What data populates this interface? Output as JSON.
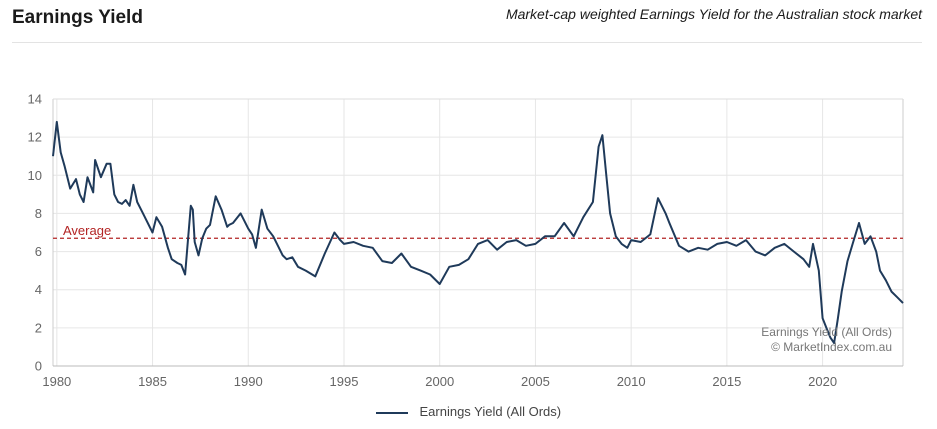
{
  "header": {
    "title": "Earnings Yield",
    "subtitle": "Market-cap weighted Earnings Yield for the Australian stock market"
  },
  "colors": {
    "series": "#1f3a5a",
    "average": "#b32424",
    "grid": "#e6e6e6"
  },
  "chart_data": {
    "type": "line",
    "title": "Earnings Yield",
    "subtitle": "Market-cap weighted Earnings Yield for the Australian stock market",
    "xlabel": "",
    "ylabel": "",
    "xlim": [
      1979.8,
      2024.2
    ],
    "ylim": [
      0,
      14
    ],
    "xticks": [
      1980,
      1985,
      1990,
      1995,
      2000,
      2005,
      2010,
      2015,
      2020
    ],
    "yticks": [
      0,
      2,
      4,
      6,
      8,
      10,
      12,
      14
    ],
    "grid": true,
    "legend": "bottom-center",
    "average": {
      "label": "Average",
      "value": 6.7
    },
    "credits": [
      "Earnings Yield (All Ords)",
      "© MarketIndex.com.au"
    ],
    "series": [
      {
        "name": "Earnings Yield (All Ords)",
        "x": [
          1979.8,
          1980.0,
          1980.2,
          1980.4,
          1980.7,
          1981.0,
          1981.2,
          1981.4,
          1981.6,
          1981.9,
          1982.0,
          1982.3,
          1982.6,
          1982.8,
          1983.0,
          1983.2,
          1983.4,
          1983.6,
          1983.8,
          1984.0,
          1984.2,
          1984.5,
          1984.7,
          1985.0,
          1985.2,
          1985.5,
          1985.8,
          1986.0,
          1986.3,
          1986.5,
          1986.7,
          1987.0,
          1987.1,
          1987.2,
          1987.4,
          1987.6,
          1987.8,
          1988.0,
          1988.3,
          1988.6,
          1988.9,
          1989.0,
          1989.2,
          1989.6,
          1990.0,
          1990.2,
          1990.4,
          1990.7,
          1991.0,
          1991.3,
          1991.5,
          1991.8,
          1992.0,
          1992.3,
          1992.6,
          1993.0,
          1993.5,
          1994.0,
          1994.5,
          1994.8,
          1995.0,
          1995.5,
          1996.0,
          1996.5,
          1997.0,
          1997.5,
          1998.0,
          1998.5,
          1999.0,
          1999.5,
          2000.0,
          2000.5,
          2001.0,
          2001.5,
          2002.0,
          2002.5,
          2003.0,
          2003.5,
          2004.0,
          2004.5,
          2005.0,
          2005.5,
          2006.0,
          2006.5,
          2007.0,
          2007.5,
          2008.0,
          2008.3,
          2008.5,
          2008.7,
          2008.9,
          2009.2,
          2009.5,
          2009.8,
          2010.0,
          2010.5,
          2011.0,
          2011.4,
          2011.8,
          2012.0,
          2012.5,
          2013.0,
          2013.5,
          2014.0,
          2014.5,
          2015.0,
          2015.5,
          2016.0,
          2016.5,
          2017.0,
          2017.5,
          2018.0,
          2018.5,
          2019.0,
          2019.3,
          2019.5,
          2019.8,
          2020.0,
          2020.2,
          2020.4,
          2020.6,
          2020.8,
          2021.0,
          2021.3,
          2021.6,
          2021.9,
          2022.2,
          2022.5,
          2022.8,
          2023.0,
          2023.3,
          2023.6,
          2023.9,
          2024.2
        ],
        "y": [
          11.0,
          12.8,
          11.2,
          10.5,
          9.3,
          9.8,
          9.0,
          8.6,
          9.9,
          9.1,
          10.8,
          9.9,
          10.6,
          10.6,
          9.0,
          8.6,
          8.5,
          8.7,
          8.4,
          9.5,
          8.6,
          8.0,
          7.6,
          7.0,
          7.8,
          7.3,
          6.2,
          5.6,
          5.4,
          5.3,
          4.8,
          8.4,
          8.2,
          6.5,
          5.8,
          6.7,
          7.2,
          7.4,
          8.9,
          8.2,
          7.3,
          7.4,
          7.5,
          8.0,
          7.2,
          6.9,
          6.2,
          8.2,
          7.2,
          6.8,
          6.4,
          5.8,
          5.6,
          5.7,
          5.2,
          5.0,
          4.7,
          5.9,
          7.0,
          6.6,
          6.4,
          6.5,
          6.3,
          6.2,
          5.5,
          5.4,
          5.9,
          5.2,
          5.0,
          4.8,
          4.3,
          5.2,
          5.3,
          5.6,
          6.4,
          6.6,
          6.1,
          6.5,
          6.6,
          6.3,
          6.4,
          6.8,
          6.8,
          7.5,
          6.8,
          7.8,
          8.6,
          11.5,
          12.1,
          10.0,
          8.0,
          6.8,
          6.4,
          6.2,
          6.6,
          6.5,
          6.9,
          8.8,
          8.0,
          7.5,
          6.3,
          6.0,
          6.2,
          6.1,
          6.4,
          6.5,
          6.3,
          6.6,
          6.0,
          5.8,
          6.2,
          6.4,
          6.0,
          5.6,
          5.2,
          6.4,
          5.0,
          2.5,
          2.0,
          1.5,
          1.2,
          2.5,
          3.9,
          5.5,
          6.5,
          7.5,
          6.4,
          6.8,
          6.0,
          5.0,
          4.5,
          3.9,
          3.6,
          3.3
        ]
      }
    ]
  }
}
